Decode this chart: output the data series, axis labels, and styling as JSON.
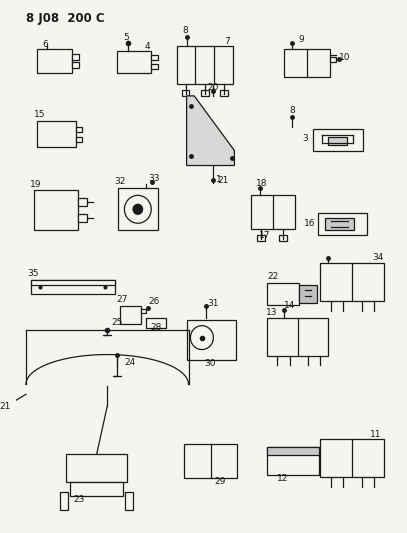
{
  "title": "8 J08  200 C",
  "bg_color": "#f5f5f0",
  "fg_color": "#1a1a1a",
  "fig_width": 4.07,
  "fig_height": 5.33,
  "dpi": 100
}
